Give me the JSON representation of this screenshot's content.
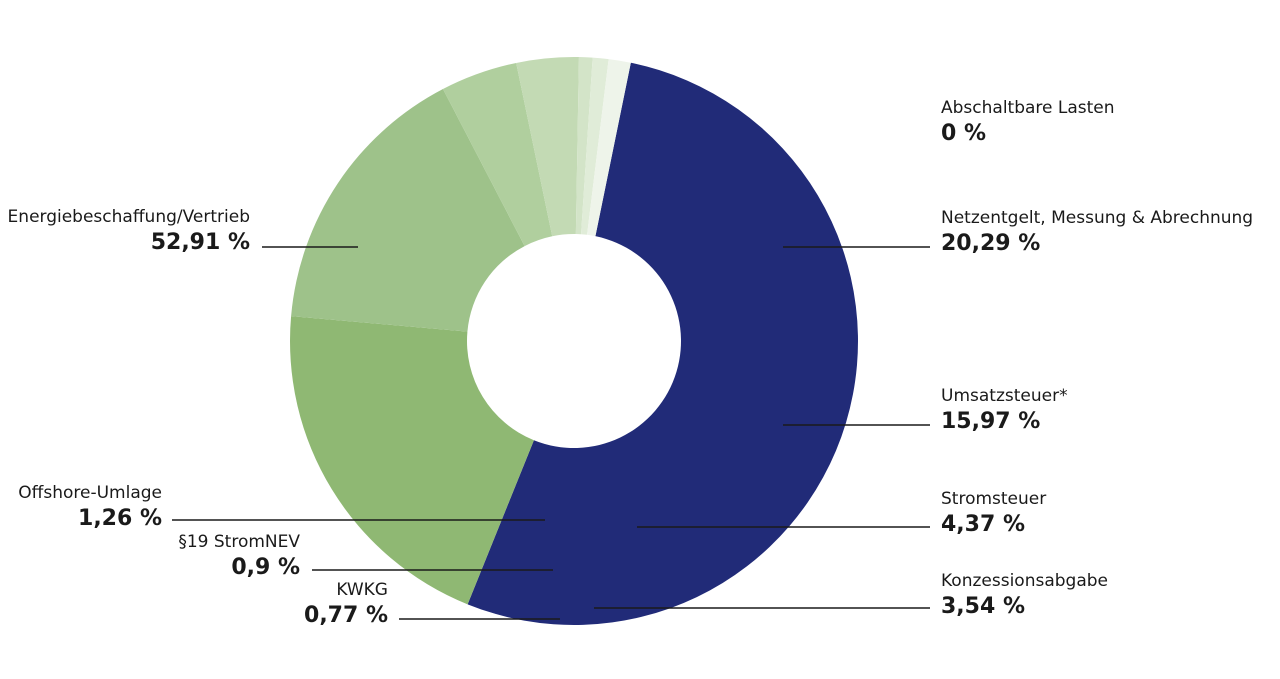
{
  "chart_data": {
    "type": "pie",
    "donut": true,
    "slices": [
      {
        "label": "Energiebeschaffung/Vertrieb",
        "value": 52.91,
        "value_text": "52,91 %",
        "color": "#212b78"
      },
      {
        "label": "Abschaltbare Lasten",
        "value": 0,
        "value_text": "0 %",
        "color": "#8fb873"
      },
      {
        "label": "Netzentgelt, Messung & Abrechnung",
        "value": 20.29,
        "value_text": "20,29 %",
        "color": "#8fb873"
      },
      {
        "label": "Umsatzsteuer*",
        "value": 15.97,
        "value_text": "15,97 %",
        "color": "#9ec28a"
      },
      {
        "label": "Stromsteuer",
        "value": 4.37,
        "value_text": "4,37 %",
        "color": "#b0cf9e"
      },
      {
        "label": "Konzessionsabgabe",
        "value": 3.54,
        "value_text": "3,54 %",
        "color": "#c3dab4"
      },
      {
        "label": "KWKG",
        "value": 0.77,
        "value_text": "0,77 %",
        "color": "#d3e4c8"
      },
      {
        "label": "§19 StromNEV",
        "value": 0.9,
        "value_text": "0,9 %",
        "color": "#e0ecd8"
      },
      {
        "label": "Offshore-Umlage",
        "value": 1.26,
        "value_text": "1,26 %",
        "color": "#eef4ea"
      }
    ]
  }
}
